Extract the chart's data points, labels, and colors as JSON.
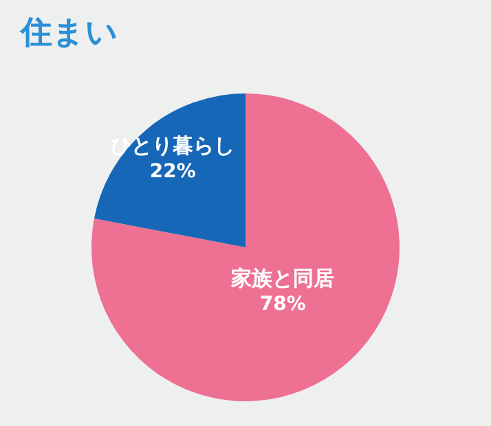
{
  "chart_data": {
    "type": "pie",
    "title": "住まい",
    "categories": [
      "家族と同居",
      "ひとり暮らし"
    ],
    "values": [
      78,
      22
    ],
    "colors": [
      "#ee7093",
      "#1667b7"
    ],
    "value_labels": [
      "78%",
      "22%"
    ],
    "legend": false
  }
}
